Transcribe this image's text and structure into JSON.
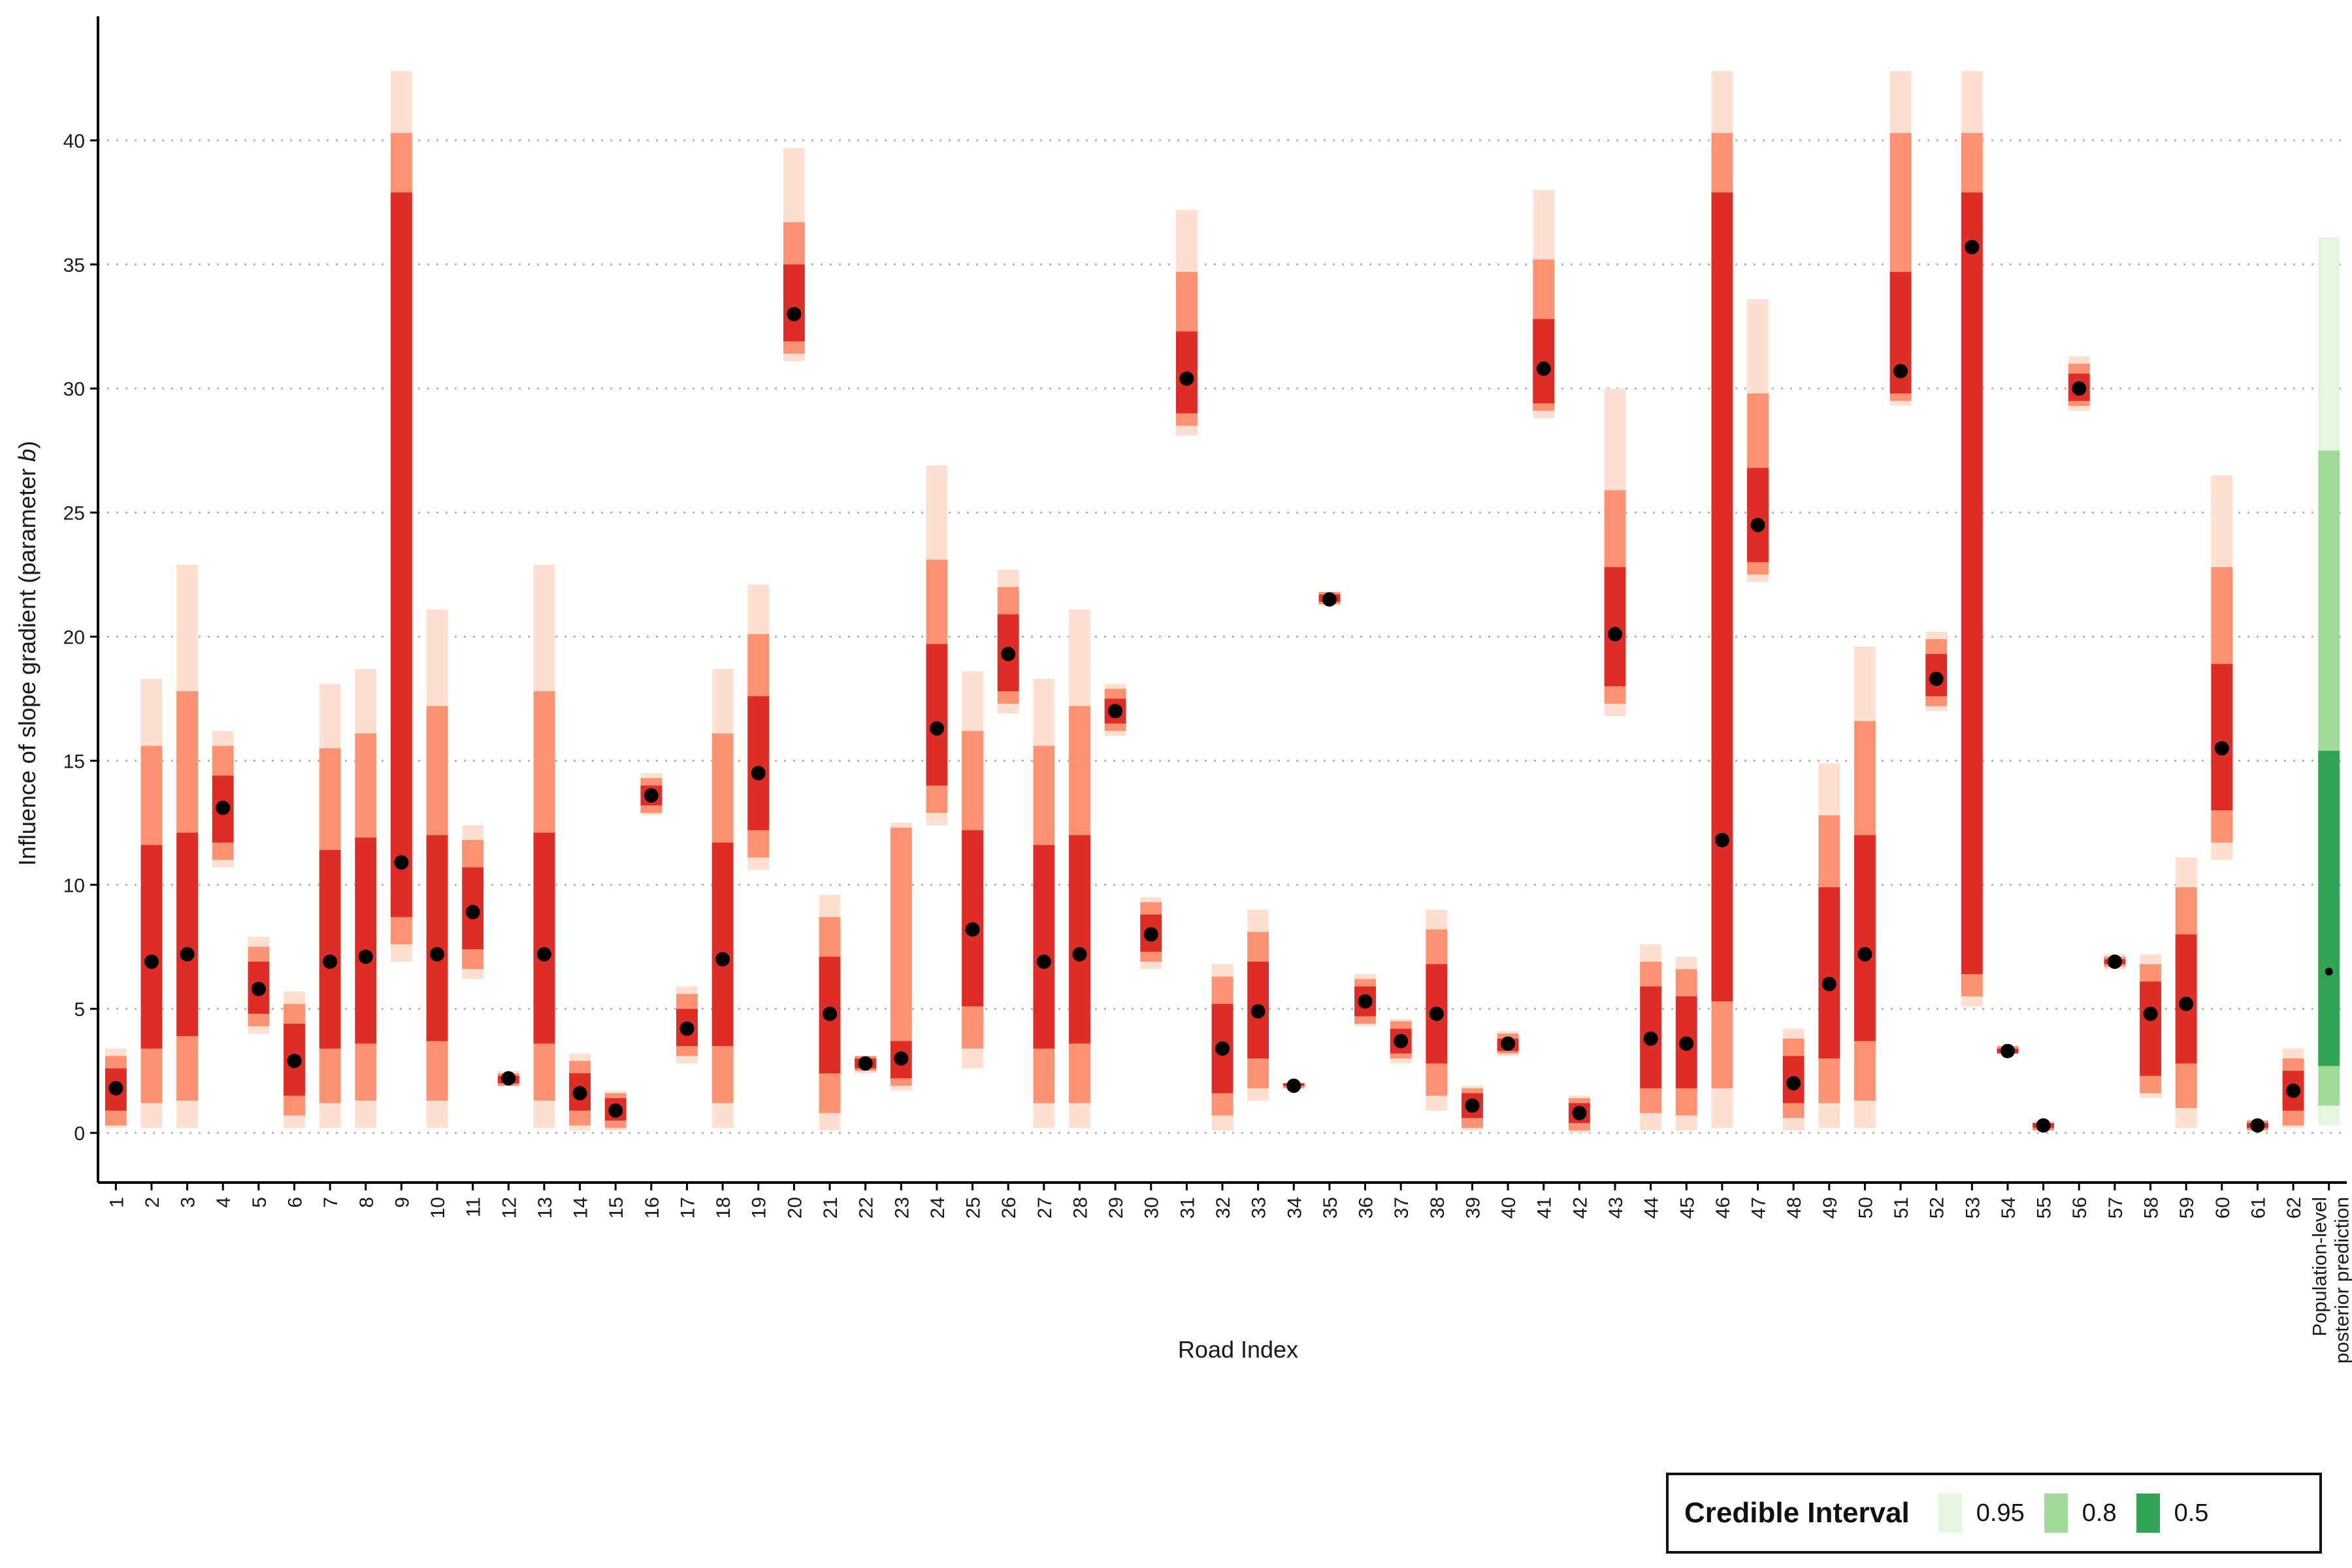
{
  "chart_data": {
    "type": "interval",
    "xlabel": "Road Index",
    "ylabel_prefix": "Influence of slope gradient (parameter ",
    "ylabel_italic": "b",
    "ylabel_suffix": ")",
    "ylim": [
      -2,
      45
    ],
    "yticks": [
      0,
      5,
      10,
      15,
      20,
      25,
      30,
      35,
      40
    ],
    "grid": "horizontal dotted",
    "legend": {
      "title": "Credible Interval",
      "position": "bottom-right",
      "items": [
        {
          "label": "0.95",
          "color": "#e5f5e0"
        },
        {
          "label": "0.8",
          "color": "#a1d99b"
        },
        {
          "label": "0.5",
          "color": "#31a354"
        }
      ]
    },
    "colors": {
      "road_95": "#fde0d2",
      "road_80": "#fc9272",
      "road_50": "#de2d26",
      "pop_95": "#e5f5e0",
      "pop_80": "#a1d99b",
      "pop_50": "#31a354",
      "point": "#000000"
    },
    "population": {
      "label_line1": "Population-level",
      "label_line2": "posterior prediction",
      "median": 6.5,
      "ci50": [
        2.7,
        15.4
      ],
      "ci80": [
        1.1,
        27.5
      ],
      "ci95": [
        0.3,
        36.1
      ]
    },
    "roads": [
      {
        "x": "1",
        "median": 1.8,
        "ci50": [
          0.9,
          2.6
        ],
        "ci80": [
          0.3,
          3.1
        ],
        "ci95": [
          0.2,
          3.4
        ]
      },
      {
        "x": "2",
        "median": 6.9,
        "ci50": [
          3.4,
          11.6
        ],
        "ci80": [
          1.2,
          15.6
        ],
        "ci95": [
          0.2,
          18.3
        ]
      },
      {
        "x": "3",
        "median": 7.2,
        "ci50": [
          3.9,
          12.1
        ],
        "ci80": [
          1.3,
          17.8
        ],
        "ci95": [
          0.2,
          22.9
        ]
      },
      {
        "x": "4",
        "median": 13.1,
        "ci50": [
          11.7,
          14.4
        ],
        "ci80": [
          11.0,
          15.6
        ],
        "ci95": [
          10.7,
          16.2
        ]
      },
      {
        "x": "5",
        "median": 5.8,
        "ci50": [
          4.8,
          6.9
        ],
        "ci80": [
          4.3,
          7.5
        ],
        "ci95": [
          4.0,
          7.9
        ]
      },
      {
        "x": "6",
        "median": 2.9,
        "ci50": [
          1.5,
          4.4
        ],
        "ci80": [
          0.7,
          5.2
        ],
        "ci95": [
          0.2,
          5.7
        ]
      },
      {
        "x": "7",
        "median": 6.9,
        "ci50": [
          3.4,
          11.4
        ],
        "ci80": [
          1.2,
          15.5
        ],
        "ci95": [
          0.2,
          18.1
        ]
      },
      {
        "x": "8",
        "median": 7.1,
        "ci50": [
          3.6,
          11.9
        ],
        "ci80": [
          1.3,
          16.1
        ],
        "ci95": [
          0.2,
          18.7
        ]
      },
      {
        "x": "9",
        "median": 10.9,
        "ci50": [
          8.7,
          37.9
        ],
        "ci80": [
          7.6,
          40.3
        ],
        "ci95": [
          6.9,
          42.8
        ]
      },
      {
        "x": "10",
        "median": 7.2,
        "ci50": [
          3.7,
          12.0
        ],
        "ci80": [
          1.3,
          17.2
        ],
        "ci95": [
          0.2,
          21.1
        ]
      },
      {
        "x": "11",
        "median": 8.9,
        "ci50": [
          7.4,
          10.7
        ],
        "ci80": [
          6.6,
          11.8
        ],
        "ci95": [
          6.2,
          12.4
        ]
      },
      {
        "x": "12",
        "median": 2.2,
        "ci50": [
          2.0,
          2.3
        ],
        "ci80": [
          1.9,
          2.4
        ],
        "ci95": [
          1.9,
          2.5
        ]
      },
      {
        "x": "13",
        "median": 7.2,
        "ci50": [
          3.6,
          12.1
        ],
        "ci80": [
          1.3,
          17.8
        ],
        "ci95": [
          0.2,
          22.9
        ]
      },
      {
        "x": "14",
        "median": 1.6,
        "ci50": [
          0.9,
          2.4
        ],
        "ci80": [
          0.3,
          2.9
        ],
        "ci95": [
          0.1,
          3.2
        ]
      },
      {
        "x": "15",
        "median": 0.9,
        "ci50": [
          0.5,
          1.4
        ],
        "ci80": [
          0.2,
          1.6
        ],
        "ci95": [
          0.1,
          1.7
        ]
      },
      {
        "x": "16",
        "median": 13.6,
        "ci50": [
          13.2,
          14.0
        ],
        "ci80": [
          12.9,
          14.3
        ],
        "ci95": [
          12.8,
          14.5
        ]
      },
      {
        "x": "17",
        "median": 4.2,
        "ci50": [
          3.5,
          5.0
        ],
        "ci80": [
          3.1,
          5.6
        ],
        "ci95": [
          2.8,
          5.9
        ]
      },
      {
        "x": "18",
        "median": 7.0,
        "ci50": [
          3.5,
          11.7
        ],
        "ci80": [
          1.2,
          16.1
        ],
        "ci95": [
          0.2,
          18.7
        ]
      },
      {
        "x": "19",
        "median": 14.5,
        "ci50": [
          12.2,
          17.6
        ],
        "ci80": [
          11.1,
          20.1
        ],
        "ci95": [
          10.6,
          22.1
        ]
      },
      {
        "x": "20",
        "median": 33.0,
        "ci50": [
          31.9,
          35.0
        ],
        "ci80": [
          31.4,
          36.7
        ],
        "ci95": [
          31.1,
          39.7
        ]
      },
      {
        "x": "21",
        "median": 4.8,
        "ci50": [
          2.4,
          7.1
        ],
        "ci80": [
          0.8,
          8.7
        ],
        "ci95": [
          0.1,
          9.6
        ]
      },
      {
        "x": "22",
        "median": 2.8,
        "ci50": [
          2.6,
          3.0
        ],
        "ci80": [
          2.5,
          3.1
        ],
        "ci95": [
          2.4,
          3.1
        ]
      },
      {
        "x": "23",
        "median": 3.0,
        "ci50": [
          2.2,
          3.7
        ],
        "ci80": [
          1.9,
          12.3
        ],
        "ci95": [
          1.7,
          12.5
        ]
      },
      {
        "x": "24",
        "median": 16.3,
        "ci50": [
          14.0,
          19.7
        ],
        "ci80": [
          12.9,
          23.1
        ],
        "ci95": [
          12.4,
          26.9
        ]
      },
      {
        "x": "25",
        "median": 8.2,
        "ci50": [
          5.1,
          12.2
        ],
        "ci80": [
          3.4,
          16.2
        ],
        "ci95": [
          2.6,
          18.6
        ]
      },
      {
        "x": "26",
        "median": 19.3,
        "ci50": [
          17.8,
          20.9
        ],
        "ci80": [
          17.3,
          22.0
        ],
        "ci95": [
          16.9,
          22.7
        ]
      },
      {
        "x": "27",
        "median": 6.9,
        "ci50": [
          3.4,
          11.6
        ],
        "ci80": [
          1.2,
          15.6
        ],
        "ci95": [
          0.2,
          18.3
        ]
      },
      {
        "x": "28",
        "median": 7.2,
        "ci50": [
          3.6,
          12.0
        ],
        "ci80": [
          1.2,
          17.2
        ],
        "ci95": [
          0.2,
          21.1
        ]
      },
      {
        "x": "29",
        "median": 17.0,
        "ci50": [
          16.5,
          17.5
        ],
        "ci80": [
          16.2,
          17.9
        ],
        "ci95": [
          16.0,
          18.1
        ]
      },
      {
        "x": "30",
        "median": 8.0,
        "ci50": [
          7.3,
          8.8
        ],
        "ci80": [
          6.9,
          9.3
        ],
        "ci95": [
          6.6,
          9.5
        ]
      },
      {
        "x": "31",
        "median": 30.4,
        "ci50": [
          29.0,
          32.3
        ],
        "ci80": [
          28.5,
          34.7
        ],
        "ci95": [
          28.1,
          37.2
        ]
      },
      {
        "x": "32",
        "median": 3.4,
        "ci50": [
          1.6,
          5.2
        ],
        "ci80": [
          0.7,
          6.3
        ],
        "ci95": [
          0.1,
          6.8
        ]
      },
      {
        "x": "33",
        "median": 4.9,
        "ci50": [
          3.0,
          6.9
        ],
        "ci80": [
          1.8,
          8.1
        ],
        "ci95": [
          1.3,
          9.0
        ]
      },
      {
        "x": "34",
        "median": 1.9,
        "ci50": [
          1.9,
          2.0
        ],
        "ci80": [
          1.8,
          2.0
        ],
        "ci95": [
          1.8,
          2.0
        ]
      },
      {
        "x": "35",
        "median": 21.5,
        "ci50": [
          21.4,
          21.7
        ],
        "ci80": [
          21.3,
          21.8
        ],
        "ci95": [
          21.3,
          21.8
        ]
      },
      {
        "x": "36",
        "median": 5.3,
        "ci50": [
          4.7,
          5.9
        ],
        "ci80": [
          4.4,
          6.2
        ],
        "ci95": [
          4.3,
          6.4
        ]
      },
      {
        "x": "37",
        "median": 3.7,
        "ci50": [
          3.2,
          4.2
        ],
        "ci80": [
          3.0,
          4.5
        ],
        "ci95": [
          2.8,
          4.6
        ]
      },
      {
        "x": "38",
        "median": 4.8,
        "ci50": [
          2.8,
          6.8
        ],
        "ci80": [
          1.5,
          8.2
        ],
        "ci95": [
          0.9,
          9.0
        ]
      },
      {
        "x": "39",
        "median": 1.1,
        "ci50": [
          0.6,
          1.6
        ],
        "ci80": [
          0.2,
          1.8
        ],
        "ci95": [
          0.1,
          1.9
        ]
      },
      {
        "x": "40",
        "median": 3.6,
        "ci50": [
          3.3,
          3.8
        ],
        "ci80": [
          3.2,
          4.0
        ],
        "ci95": [
          3.1,
          4.1
        ]
      },
      {
        "x": "41",
        "median": 30.8,
        "ci50": [
          29.4,
          32.8
        ],
        "ci80": [
          29.1,
          35.2
        ],
        "ci95": [
          28.8,
          38.0
        ]
      },
      {
        "x": "42",
        "median": 0.8,
        "ci50": [
          0.4,
          1.2
        ],
        "ci80": [
          0.1,
          1.4
        ],
        "ci95": [
          0.0,
          1.5
        ]
      },
      {
        "x": "43",
        "median": 20.1,
        "ci50": [
          18.0,
          22.8
        ],
        "ci80": [
          17.3,
          25.9
        ],
        "ci95": [
          16.8,
          30.0
        ]
      },
      {
        "x": "44",
        "median": 3.8,
        "ci50": [
          1.8,
          5.9
        ],
        "ci80": [
          0.8,
          6.9
        ],
        "ci95": [
          0.1,
          7.6
        ]
      },
      {
        "x": "45",
        "median": 3.6,
        "ci50": [
          1.8,
          5.5
        ],
        "ci80": [
          0.7,
          6.6
        ],
        "ci95": [
          0.1,
          7.1
        ]
      },
      {
        "x": "46",
        "median": 11.8,
        "ci50": [
          5.3,
          37.9
        ],
        "ci80": [
          1.8,
          40.3
        ],
        "ci95": [
          0.2,
          42.8
        ]
      },
      {
        "x": "47",
        "median": 24.5,
        "ci50": [
          23.0,
          26.8
        ],
        "ci80": [
          22.5,
          29.8
        ],
        "ci95": [
          22.2,
          33.6
        ]
      },
      {
        "x": "48",
        "median": 2.0,
        "ci50": [
          1.2,
          3.1
        ],
        "ci80": [
          0.6,
          3.8
        ],
        "ci95": [
          0.1,
          4.2
        ]
      },
      {
        "x": "49",
        "median": 6.0,
        "ci50": [
          3.0,
          9.9
        ],
        "ci80": [
          1.2,
          12.8
        ],
        "ci95": [
          0.2,
          14.9
        ]
      },
      {
        "x": "50",
        "median": 7.2,
        "ci50": [
          3.7,
          12.0
        ],
        "ci80": [
          1.3,
          16.6
        ],
        "ci95": [
          0.2,
          19.6
        ]
      },
      {
        "x": "51",
        "median": 30.7,
        "ci50": [
          29.8,
          34.7
        ],
        "ci80": [
          29.5,
          40.3
        ],
        "ci95": [
          29.3,
          42.8
        ]
      },
      {
        "x": "52",
        "median": 18.3,
        "ci50": [
          17.6,
          19.3
        ],
        "ci80": [
          17.2,
          19.9
        ],
        "ci95": [
          17.0,
          20.2
        ]
      },
      {
        "x": "53",
        "median": 35.7,
        "ci50": [
          6.4,
          37.9
        ],
        "ci80": [
          5.5,
          40.3
        ],
        "ci95": [
          5.1,
          42.8
        ]
      },
      {
        "x": "54",
        "median": 3.3,
        "ci50": [
          3.2,
          3.4
        ],
        "ci80": [
          3.2,
          3.5
        ],
        "ci95": [
          3.2,
          3.5
        ]
      },
      {
        "x": "55",
        "median": 0.3,
        "ci50": [
          0.2,
          0.4
        ],
        "ci80": [
          0.1,
          0.4
        ],
        "ci95": [
          0.1,
          0.5
        ]
      },
      {
        "x": "56",
        "median": 30.0,
        "ci50": [
          29.5,
          30.6
        ],
        "ci80": [
          29.3,
          31.0
        ],
        "ci95": [
          29.1,
          31.3
        ]
      },
      {
        "x": "57",
        "median": 6.9,
        "ci50": [
          6.8,
          7.0
        ],
        "ci80": [
          6.7,
          7.1
        ],
        "ci95": [
          6.6,
          7.2
        ]
      },
      {
        "x": "58",
        "median": 4.8,
        "ci50": [
          2.3,
          6.1
        ],
        "ci80": [
          1.6,
          6.8
        ],
        "ci95": [
          1.4,
          7.2
        ]
      },
      {
        "x": "59",
        "median": 5.2,
        "ci50": [
          2.8,
          8.0
        ],
        "ci80": [
          1.0,
          9.9
        ],
        "ci95": [
          0.2,
          11.1
        ]
      },
      {
        "x": "60",
        "median": 15.5,
        "ci50": [
          13.0,
          18.9
        ],
        "ci80": [
          11.7,
          22.8
        ],
        "ci95": [
          11.0,
          26.5
        ]
      },
      {
        "x": "61",
        "median": 0.3,
        "ci50": [
          0.2,
          0.4
        ],
        "ci80": [
          0.1,
          0.5
        ],
        "ci95": [
          0.1,
          0.5
        ]
      },
      {
        "x": "62",
        "median": 1.7,
        "ci50": [
          0.9,
          2.5
        ],
        "ci80": [
          0.3,
          3.0
        ],
        "ci95": [
          0.2,
          3.4
        ]
      }
    ]
  }
}
